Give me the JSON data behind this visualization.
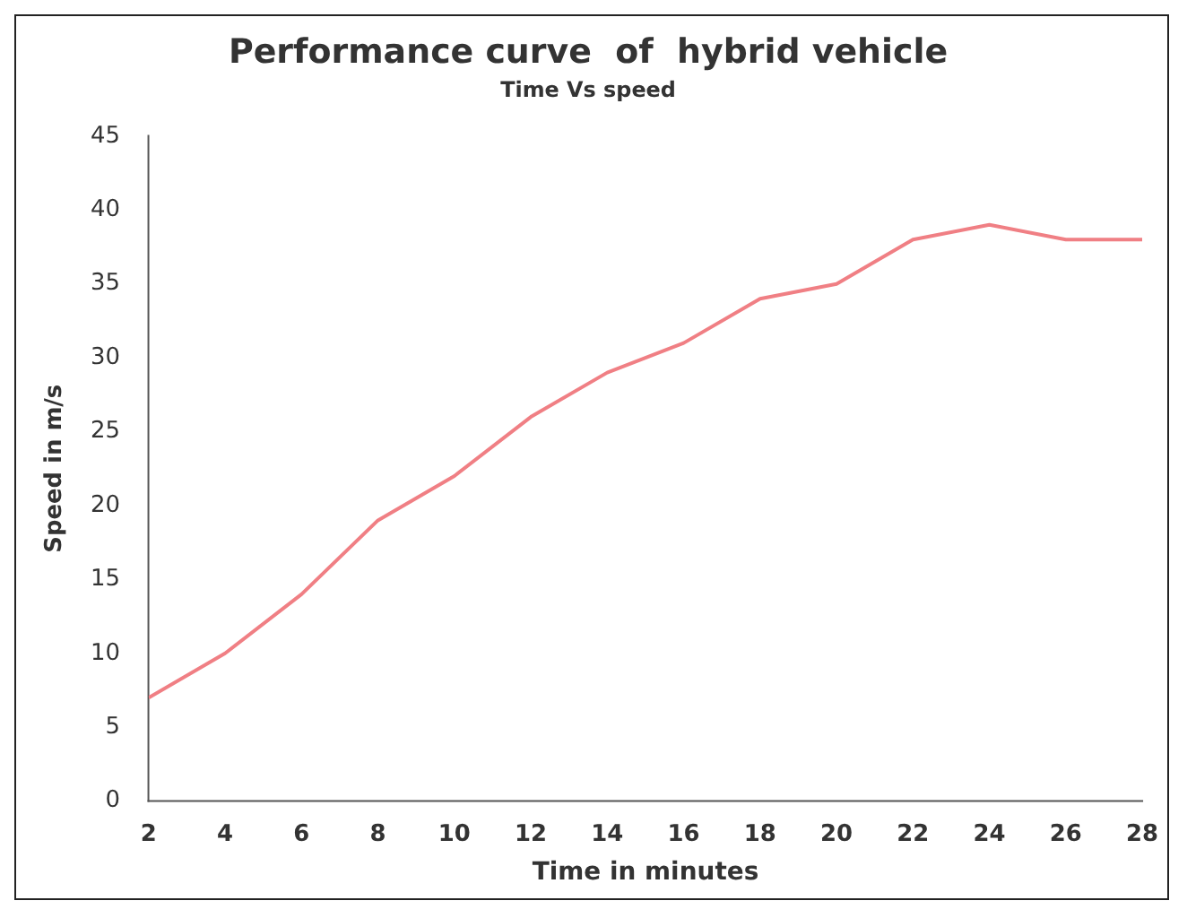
{
  "chart_data": {
    "type": "line",
    "title": "Performance curve  of  hybrid vehicle",
    "subtitle": "Time Vs speed",
    "xlabel": "Time in minutes",
    "ylabel": "Speed in m/s",
    "x": [
      2,
      4,
      6,
      8,
      10,
      12,
      14,
      16,
      18,
      20,
      22,
      24,
      26,
      28
    ],
    "series": [
      {
        "color": "#f07f84",
        "values": [
          7,
          10,
          14,
          19,
          22,
          26,
          29,
          31,
          34,
          35,
          38,
          39,
          38,
          38
        ]
      }
    ],
    "xlim": [
      2,
      28
    ],
    "xticks": [
      2,
      4,
      6,
      8,
      10,
      12,
      14,
      16,
      18,
      20,
      22,
      24,
      26,
      28
    ],
    "ylim": [
      0,
      45
    ],
    "yticks": [
      0,
      5,
      10,
      15,
      20,
      25,
      30,
      35,
      40,
      45
    ],
    "grid": false,
    "legend": false
  }
}
